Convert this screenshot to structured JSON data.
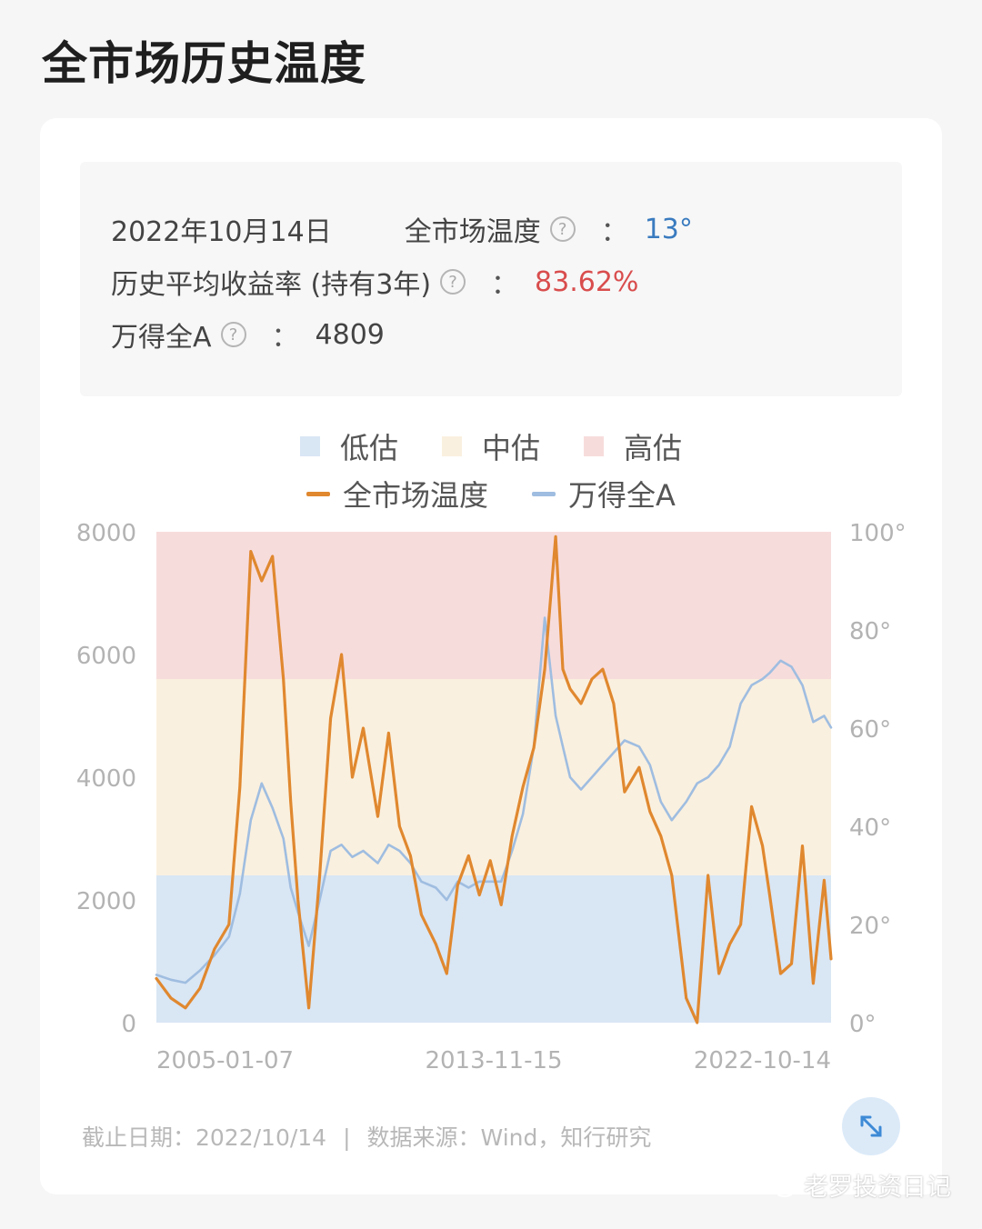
{
  "page": {
    "title": "全市场历史温度"
  },
  "summary": {
    "date": "2022年10月14日",
    "temp_label": "全市场温度",
    "temp_value": "13°",
    "return_label": "历史平均收益率 (持有3年)",
    "return_value": "83.62%",
    "index_label": "万得全A",
    "index_value": "4809",
    "colon": "："
  },
  "legend": {
    "zones": [
      {
        "label": "低估",
        "color": "#d9e6f4"
      },
      {
        "label": "中估",
        "color": "#faf0df"
      },
      {
        "label": "高估",
        "color": "#f7dcdc"
      }
    ],
    "lines": [
      {
        "label": "全市场温度",
        "color": "#e0882f"
      },
      {
        "label": "万得全A",
        "color": "#9fbde0"
      }
    ]
  },
  "chart_data": {
    "type": "line",
    "x_ticks": [
      "2005-01-07",
      "2013-11-15",
      "2022-10-14"
    ],
    "y_left_ticks": [
      "8000",
      "6000",
      "4000",
      "2000",
      "0"
    ],
    "y_right_ticks": [
      "100°",
      "80°",
      "60°",
      "40°",
      "20°",
      "0°"
    ],
    "y_left_range": [
      0,
      8000
    ],
    "y_right_range": [
      0,
      100
    ],
    "zones": [
      {
        "name": "低估",
        "from": 0,
        "to": 30,
        "color": "#d9e6f4"
      },
      {
        "name": "中估",
        "from": 30,
        "to": 70,
        "color": "#faf0df"
      },
      {
        "name": "高估",
        "from": 70,
        "to": 100,
        "color": "#f7dcdc"
      }
    ],
    "series": [
      {
        "name": "全市场温度",
        "axis": "right",
        "color": "#e0882f",
        "x": [
          2004.2,
          2004.6,
          2005.0,
          2005.4,
          2005.8,
          2006.2,
          2006.5,
          2006.8,
          2007.1,
          2007.4,
          2007.7,
          2007.9,
          2008.1,
          2008.4,
          2008.7,
          2009.0,
          2009.3,
          2009.6,
          2009.9,
          2010.3,
          2010.6,
          2010.9,
          2011.2,
          2011.5,
          2011.9,
          2012.2,
          2012.5,
          2012.8,
          2013.1,
          2013.4,
          2013.7,
          2014.0,
          2014.3,
          2014.6,
          2014.9,
          2015.2,
          2015.4,
          2015.6,
          2015.9,
          2016.2,
          2016.5,
          2016.8,
          2017.1,
          2017.5,
          2017.8,
          2018.1,
          2018.4,
          2018.8,
          2019.1,
          2019.4,
          2019.7,
          2020.0,
          2020.3,
          2020.6,
          2020.9,
          2021.1,
          2021.4,
          2021.7,
          2022.0,
          2022.3,
          2022.6,
          2022.79
        ],
        "values": [
          9,
          5,
          3,
          7,
          15,
          20,
          48,
          96,
          90,
          95,
          70,
          45,
          25,
          3,
          30,
          62,
          75,
          50,
          60,
          42,
          59,
          40,
          34,
          22,
          16,
          10,
          28,
          34,
          26,
          33,
          24,
          38,
          48,
          56,
          72,
          99,
          72,
          68,
          65,
          70,
          72,
          65,
          47,
          52,
          43,
          38,
          30,
          5,
          0,
          30,
          10,
          16,
          20,
          44,
          36,
          26,
          10,
          12,
          36,
          8,
          29,
          13
        ]
      },
      {
        "name": "万得全A",
        "axis": "left",
        "color": "#9fbde0",
        "x": [
          2004.2,
          2004.6,
          2005.0,
          2005.4,
          2005.8,
          2006.2,
          2006.5,
          2006.8,
          2007.1,
          2007.4,
          2007.7,
          2007.9,
          2008.1,
          2008.4,
          2008.7,
          2009.0,
          2009.3,
          2009.6,
          2009.9,
          2010.3,
          2010.6,
          2010.9,
          2011.2,
          2011.5,
          2011.9,
          2012.2,
          2012.5,
          2012.8,
          2013.1,
          2013.4,
          2013.7,
          2014.0,
          2014.3,
          2014.6,
          2014.9,
          2015.2,
          2015.4,
          2015.6,
          2015.9,
          2016.2,
          2016.5,
          2016.8,
          2017.1,
          2017.5,
          2017.8,
          2018.1,
          2018.4,
          2018.8,
          2019.1,
          2019.4,
          2019.7,
          2020.0,
          2020.3,
          2020.6,
          2020.9,
          2021.1,
          2021.4,
          2021.7,
          2022.0,
          2022.3,
          2022.6,
          2022.79
        ],
        "values": [
          780,
          700,
          650,
          850,
          1100,
          1400,
          2100,
          3300,
          3900,
          3500,
          3000,
          2200,
          1800,
          1250,
          2000,
          2800,
          2900,
          2700,
          2800,
          2600,
          2900,
          2800,
          2600,
          2300,
          2200,
          2000,
          2300,
          2200,
          2300,
          2300,
          2300,
          2800,
          3400,
          4500,
          6600,
          5000,
          4500,
          4000,
          3800,
          4000,
          4200,
          4400,
          4600,
          4500,
          4200,
          3600,
          3300,
          3600,
          3900,
          4000,
          4200,
          4500,
          5200,
          5500,
          5600,
          5700,
          5900,
          5800,
          5500,
          4900,
          5000,
          4809
        ]
      }
    ]
  },
  "footer": {
    "cutoff": "截止日期：2022/10/14",
    "separator": "|",
    "source": "数据来源：Wind，知行研究"
  },
  "watermark": {
    "text": "老罗投资日记"
  },
  "icons": {
    "help": "question-circle-icon",
    "expand": "expand-arrows-icon",
    "wechat": "wechat-icon"
  }
}
